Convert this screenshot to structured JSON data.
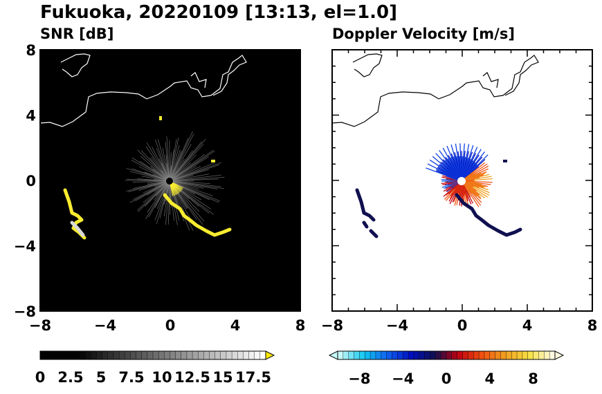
{
  "title": "Fukuoka, 20220109 [13:13, el=1.0]",
  "chart_data": [
    {
      "type": "heatmap",
      "subtitle": "SNR [dB]",
      "xlim": [
        -8,
        8
      ],
      "ylim": [
        -8,
        8
      ],
      "x_ticks": [
        "−8",
        "−4",
        "0",
        "4",
        "8"
      ],
      "y_ticks": [
        "8",
        "4",
        "0",
        "−4",
        "−8"
      ],
      "background": "#000000",
      "colorbar": {
        "range": [
          0,
          20
        ],
        "tick_labels": [
          "0",
          "2.5",
          "5",
          "7.5",
          "10",
          "12.5",
          "15",
          "17.5"
        ],
        "colors": [
          "#000000",
          "#ffffff",
          "#ffe800"
        ],
        "extend": "max"
      }
    },
    {
      "type": "heatmap",
      "subtitle": "Doppler Velocity [m/s]",
      "xlim": [
        -8,
        8
      ],
      "ylim": [
        -8,
        8
      ],
      "x_ticks": [
        "−8",
        "−4",
        "0",
        "4",
        "8"
      ],
      "y_ticks": [
        "8",
        "4",
        "0",
        "−4",
        "−8"
      ],
      "background": "#ffffff",
      "colorbar": {
        "range": [
          -10,
          10
        ],
        "tick_labels": [
          "−8",
          "−4",
          "0",
          "4",
          "8"
        ],
        "colors": [
          "#c8fafa",
          "#10c8f0",
          "#1060f0",
          "#0010c0",
          "#101050",
          "#c00010",
          "#f05010",
          "#f0a020",
          "#f8e040",
          "#fffae0"
        ],
        "extend": "both"
      }
    }
  ]
}
